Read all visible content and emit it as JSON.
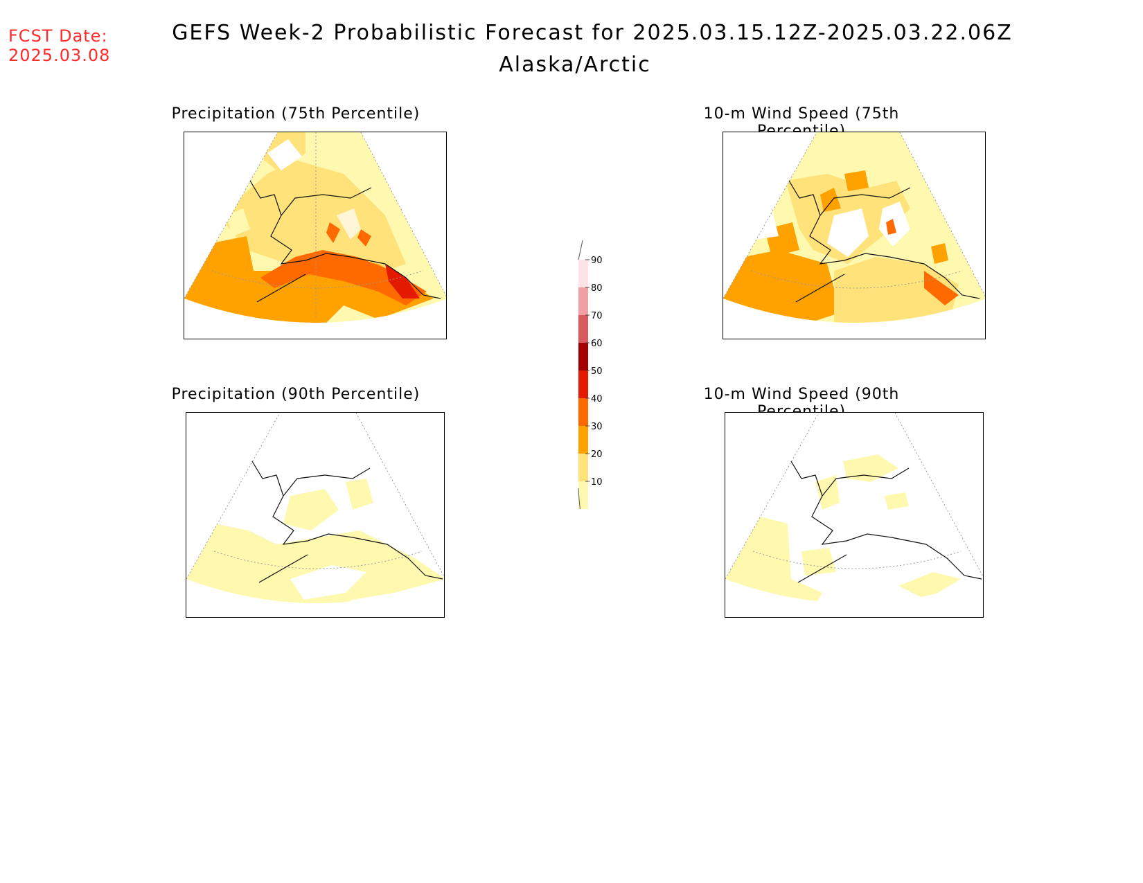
{
  "header": {
    "fcst_label": "FCST Date:",
    "fcst_date": "2025.03.08",
    "title": "GEFS Week-2 Probabilistic Forecast for 2025.03.15.12Z-2025.03.22.06Z",
    "region": "Alaska/Arctic"
  },
  "panels": [
    {
      "title": "Precipitation (75th Percentile)"
    },
    {
      "title": "10-m Wind Speed (75th Percentile)"
    },
    {
      "title": "Precipitation (90th Percentile)"
    },
    {
      "title": "10-m Wind Speed (90th Percentile)"
    }
  ],
  "colorbar": {
    "levels": [
      10,
      20,
      30,
      40,
      50,
      60,
      70,
      80,
      90
    ],
    "tick_labels": [
      "10",
      "20",
      "30",
      "40",
      "50",
      "60",
      "70",
      "80",
      "90"
    ],
    "colors": [
      "#fff9b0",
      "#ffe27a",
      "#ffa200",
      "#ff6a00",
      "#e31a00",
      "#a50000",
      "#d9595e",
      "#f2a0a5",
      "#ffe3e6"
    ]
  }
}
